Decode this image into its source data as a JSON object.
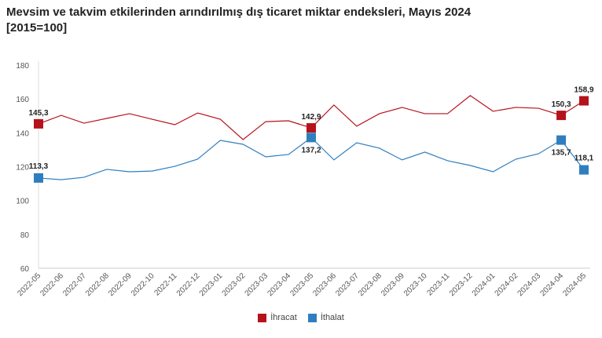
{
  "chart_data": {
    "type": "line",
    "title": "Mevsim ve takvim etkilerinden arındırılmış dış ticaret miktar endeksleri, Mayıs 2024",
    "subtitle": "[2015=100]",
    "xlabel": "",
    "ylabel": "",
    "ylim": [
      60,
      180
    ],
    "yticks": [
      60,
      80,
      100,
      120,
      140,
      160,
      180
    ],
    "grid": false,
    "legend_position": "bottom",
    "categories": [
      "2022-05",
      "2022-06",
      "2022-07",
      "2022-08",
      "2022-09",
      "2022-10",
      "2022-11",
      "2022-12",
      "2023-01",
      "2023-02",
      "2023-03",
      "2023-04",
      "2023-05",
      "2023-06",
      "2023-07",
      "2023-08",
      "2023-09",
      "2023-10",
      "2023-11",
      "2023-12",
      "2024-01",
      "2024-02",
      "2024-03",
      "2024-04",
      "2024-05"
    ],
    "series": [
      {
        "name": "İhracat",
        "color": "#b5121b",
        "values": [
          145.3,
          150.3,
          145.7,
          148.5,
          151.3,
          148.0,
          144.8,
          151.7,
          148.0,
          136.0,
          146.6,
          147.1,
          142.9,
          156.4,
          143.9,
          151.3,
          155.0,
          151.3,
          151.3,
          162.0,
          152.7,
          155.0,
          154.5,
          150.3,
          158.9
        ],
        "labels": {
          "0": "145,3",
          "12": "142,9",
          "23": "150,3",
          "24": "158,9"
        }
      },
      {
        "name": "İthalat",
        "color": "#2f7ebf",
        "values": [
          113.3,
          112.3,
          113.7,
          118.4,
          117.0,
          117.4,
          120.2,
          124.4,
          135.5,
          133.2,
          125.8,
          127.2,
          137.2,
          124.0,
          134.1,
          130.9,
          124.0,
          128.6,
          123.5,
          120.7,
          117.0,
          124.4,
          127.6,
          135.7,
          118.1
        ],
        "labels": {
          "0": "113,3",
          "12": "137,2",
          "23": "135,7",
          "24": "118,1"
        }
      }
    ]
  }
}
